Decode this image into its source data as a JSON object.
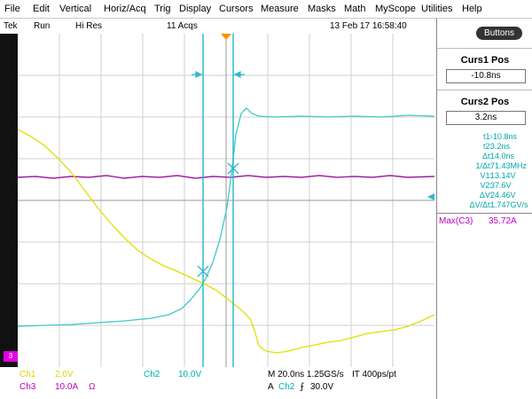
{
  "menu": [
    "File",
    "Edit",
    "Vertical",
    "Horiz/Acq",
    "Trig",
    "Display",
    "Cursors",
    "Measure",
    "Masks",
    "Math",
    "MyScope",
    "Utilities",
    "Help"
  ],
  "status": {
    "brand": "Tek",
    "mode": "Run",
    "res": "Hi Res",
    "acqs": "11 Acqs",
    "datetime": "13 Feb 17 16:58:40"
  },
  "panel": {
    "buttons_label": "Buttons",
    "curs1_label": "Curs1 Pos",
    "curs1_value": "-10.8ns",
    "curs2_label": "Curs2 Pos",
    "curs2_value": "3.2ns",
    "measurements": [
      {
        "k": "t1:",
        "v": "-10.8ns"
      },
      {
        "k": "t2:",
        "v": "3.2ns"
      },
      {
        "k": "Δt:",
        "v": "14.0ns"
      },
      {
        "k": "1/Δt:",
        "v": "71.43MHz"
      },
      {
        "k": "V1:",
        "v": "13.14V"
      },
      {
        "k": "V2:",
        "v": "37.6V"
      },
      {
        "k": "ΔV:",
        "v": "24.46V"
      },
      {
        "k": "ΔV/Δt:",
        "v": "1.747GV/s"
      }
    ],
    "max_label": "Max(C3)",
    "max_value": "35.72A"
  },
  "bottom": {
    "ch1": "Ch1",
    "ch1_scale": "2.0V",
    "ch2": "Ch2",
    "ch2_scale": "10.0V",
    "ch3": "Ch3",
    "ch3_scale": "10.0A",
    "ch3_unit": "Ω",
    "timebase": "M 20.0ns 1.25GS/s",
    "record": "IT 400ps/pt",
    "trig_src_prefix": "A",
    "trig_src": "Ch2",
    "trig_slope": "⨍",
    "trig_level": "30.0V"
  },
  "ref_marker": "3",
  "colors": {
    "ch1": "#e0e000",
    "ch2": "#40c8c8",
    "ch3": "#a020a0",
    "cursor": "#30b8d0",
    "trigger": "#ff9000"
  }
}
